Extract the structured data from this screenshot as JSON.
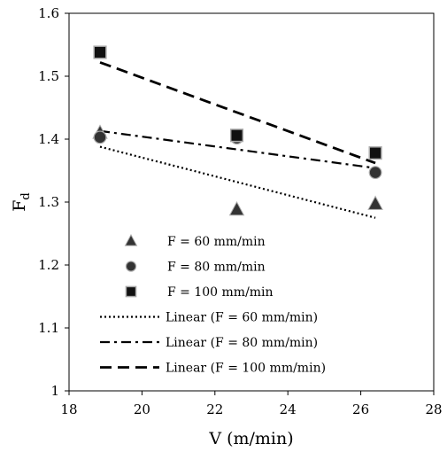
{
  "chart_data": {
    "type": "scatter",
    "xlabel": "V (m/min)",
    "ylabel": "F",
    "ylabel_subscript": "d",
    "xlim": [
      18,
      28
    ],
    "ylim": [
      1.0,
      1.6
    ],
    "x_ticks": [
      "18",
      "20",
      "22",
      "24",
      "26",
      "28"
    ],
    "y_ticks": [
      "1",
      "1.1",
      "1.2",
      "1.3",
      "1.4",
      "1.5",
      "1.6"
    ],
    "grid": false,
    "legend_position": "inside-bottom-left",
    "series": [
      {
        "name": "F = 60 mm/min",
        "marker": "triangle",
        "color": "#333333",
        "points": [
          {
            "x": 18.85,
            "y": 1.41
          },
          {
            "x": 22.6,
            "y": 1.288
          },
          {
            "x": 26.4,
            "y": 1.297
          }
        ]
      },
      {
        "name": "F = 80 mm/min",
        "marker": "circle",
        "color": "#333333",
        "points": [
          {
            "x": 18.85,
            "y": 1.403
          },
          {
            "x": 22.6,
            "y": 1.402
          },
          {
            "x": 26.4,
            "y": 1.347
          }
        ]
      },
      {
        "name": "F = 100 mm/min",
        "marker": "square",
        "color": "#111111",
        "points": [
          {
            "x": 18.85,
            "y": 1.538
          },
          {
            "x": 22.6,
            "y": 1.406
          },
          {
            "x": 26.4,
            "y": 1.378
          }
        ]
      }
    ],
    "trendlines": [
      {
        "name": "Linear (F = 60 mm/min)",
        "style": "dotted",
        "x": [
          18.85,
          26.4
        ],
        "y": [
          1.388,
          1.275
        ]
      },
      {
        "name": "Linear (F = 80 mm/min)",
        "style": "dash-dot",
        "x": [
          18.85,
          26.4
        ],
        "y": [
          1.413,
          1.354
        ]
      },
      {
        "name": "Linear (F = 100 mm/min)",
        "style": "dashed",
        "x": [
          18.85,
          26.4
        ],
        "y": [
          1.522,
          1.362
        ]
      }
    ]
  }
}
